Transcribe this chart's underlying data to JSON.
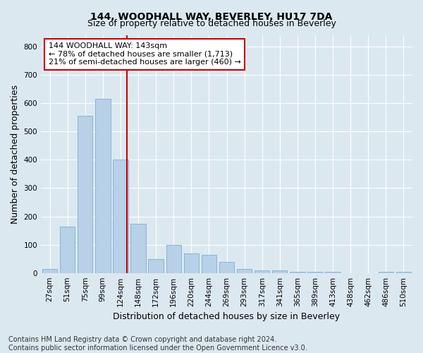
{
  "title": "144, WOODHALL WAY, BEVERLEY, HU17 7DA",
  "subtitle": "Size of property relative to detached houses in Beverley",
  "xlabel": "Distribution of detached houses by size in Beverley",
  "ylabel": "Number of detached properties",
  "bin_labels": [
    "27sqm",
    "51sqm",
    "75sqm",
    "99sqm",
    "124sqm",
    "148sqm",
    "172sqm",
    "196sqm",
    "220sqm",
    "244sqm",
    "269sqm",
    "293sqm",
    "317sqm",
    "341sqm",
    "365sqm",
    "389sqm",
    "413sqm",
    "438sqm",
    "462sqm",
    "486sqm",
    "510sqm"
  ],
  "bar_heights": [
    15,
    165,
    555,
    615,
    400,
    175,
    50,
    100,
    70,
    65,
    40,
    15,
    10,
    10,
    5,
    5,
    5,
    0,
    0,
    5,
    5
  ],
  "bar_color": "#b8d0e8",
  "bar_edge_color": "#7aafd4",
  "red_line_x": 4.35,
  "red_line_color": "#cc0000",
  "annotation_text_line1": "144 WOODHALL WAY: 143sqm",
  "annotation_text_line2": "← 78% of detached houses are smaller (1,713)",
  "annotation_text_line3": "21% of semi-detached houses are larger (460) →",
  "annotation_box_color": "#ffffff",
  "annotation_box_edge": "#cc0000",
  "ylim": [
    0,
    840
  ],
  "yticks": [
    0,
    100,
    200,
    300,
    400,
    500,
    600,
    700,
    800
  ],
  "footer": "Contains HM Land Registry data © Crown copyright and database right 2024.\nContains public sector information licensed under the Open Government Licence v3.0.",
  "bg_color": "#dce8f0",
  "plot_bg_color": "#dce8f0",
  "grid_color": "#ffffff",
  "title_fontsize": 10,
  "subtitle_fontsize": 9,
  "label_fontsize": 9,
  "tick_fontsize": 7.5,
  "footer_fontsize": 7,
  "bar_width": 0.85
}
